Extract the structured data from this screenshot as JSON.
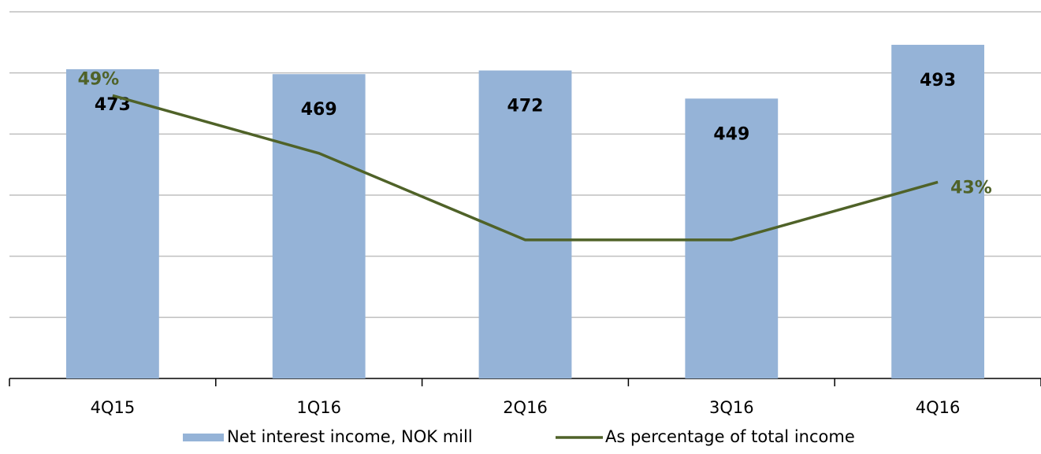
{
  "chart_data": {
    "type": "bar_line",
    "categories": [
      "4Q15",
      "1Q16",
      "2Q16",
      "3Q16",
      "4Q16"
    ],
    "series": [
      {
        "name": "Net interest income, NOK mill",
        "type": "bar",
        "color": "#95b3d7",
        "values": [
          473,
          469,
          472,
          449,
          493
        ]
      },
      {
        "name": "As percentage of total income",
        "type": "line",
        "axis": "y2",
        "color": "#4f6228",
        "values": [
          49,
          45,
          39,
          39,
          43
        ],
        "value_labels": [
          "49%",
          null,
          null,
          null,
          "43%"
        ]
      }
    ],
    "ylim": [
      220,
      520
    ],
    "yticks": [
      220,
      270,
      320,
      370,
      420,
      470,
      520
    ],
    "y2lim": [
      29.4,
      54.8
    ],
    "grid": true,
    "legend": "bottom"
  }
}
